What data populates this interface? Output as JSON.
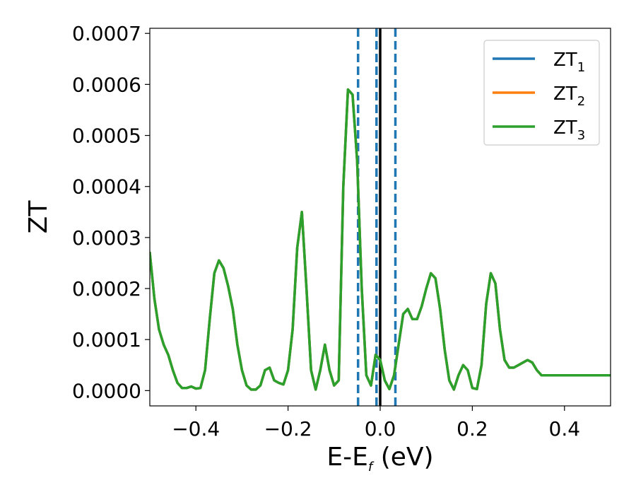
{
  "chart_data": {
    "type": "line",
    "xlabel_main": "E-E",
    "xlabel_sub": "f",
    "xlabel_unit": " (eV)",
    "ylabel": "ZT",
    "xlim": [
      -0.5,
      0.5
    ],
    "ylim": [
      -3e-05,
      0.00071
    ],
    "xticks": [
      -0.4,
      -0.2,
      0.0,
      0.2,
      0.4
    ],
    "xtick_labels": [
      "−0.4",
      "−0.2",
      "0.0",
      "0.2",
      "0.4"
    ],
    "yticks": [
      0.0,
      0.0001,
      0.0002,
      0.0003,
      0.0004,
      0.0005,
      0.0006,
      0.0007
    ],
    "ytick_labels": [
      "0.0000",
      "0.0001",
      "0.0002",
      "0.0003",
      "0.0004",
      "0.0005",
      "0.0006",
      "0.0007"
    ],
    "legend_position": "top-right",
    "grid": false,
    "vlines": [
      {
        "x": -0.048,
        "style": "dashed",
        "color": "#1f77b4"
      },
      {
        "x": -0.008,
        "style": "dashed",
        "color": "#1f77b4"
      },
      {
        "x": 0.033,
        "style": "dashed",
        "color": "#1f77b4"
      },
      {
        "x": 0.0,
        "style": "solid",
        "color": "#000000"
      }
    ],
    "series": [
      {
        "name": "ZT",
        "sub": "1",
        "color": "#1f77b4"
      },
      {
        "name": "ZT",
        "sub": "2",
        "color": "#ff7f0e"
      },
      {
        "name": "ZT",
        "sub": "3",
        "color": "#2ca02c"
      }
    ],
    "x": [
      -0.5,
      -0.49,
      -0.48,
      -0.47,
      -0.46,
      -0.45,
      -0.44,
      -0.43,
      -0.42,
      -0.41,
      -0.4,
      -0.39,
      -0.38,
      -0.37,
      -0.36,
      -0.35,
      -0.34,
      -0.33,
      -0.32,
      -0.31,
      -0.3,
      -0.29,
      -0.28,
      -0.27,
      -0.26,
      -0.25,
      -0.24,
      -0.23,
      -0.22,
      -0.21,
      -0.2,
      -0.19,
      -0.18,
      -0.17,
      -0.16,
      -0.15,
      -0.14,
      -0.13,
      -0.12,
      -0.11,
      -0.1,
      -0.09,
      -0.08,
      -0.07,
      -0.06,
      -0.05,
      -0.04,
      -0.03,
      -0.02,
      -0.01,
      0.0,
      0.01,
      0.02,
      0.03,
      0.04,
      0.05,
      0.06,
      0.07,
      0.08,
      0.09,
      0.1,
      0.11,
      0.12,
      0.13,
      0.14,
      0.15,
      0.16,
      0.17,
      0.18,
      0.19,
      0.2,
      0.21,
      0.22,
      0.23,
      0.24,
      0.25,
      0.26,
      0.27,
      0.28,
      0.29,
      0.3,
      0.31,
      0.32,
      0.33,
      0.34,
      0.35,
      0.36,
      0.37,
      0.38,
      0.39,
      0.4,
      0.41,
      0.42,
      0.43,
      0.44,
      0.45,
      0.46,
      0.47,
      0.48,
      0.49,
      0.5
    ],
    "y": [
      0.00027,
      0.00018,
      0.00012,
      9e-05,
      7e-05,
      4e-05,
      1.5e-05,
      5e-06,
      5e-06,
      8e-06,
      4e-06,
      5e-06,
      4e-05,
      0.00014,
      0.00023,
      0.000255,
      0.00024,
      0.000205,
      0.00016,
      9e-05,
      4e-05,
      1e-05,
      2e-06,
      2e-06,
      1e-05,
      4e-05,
      4.5e-05,
      2e-05,
      1.5e-05,
      1.2e-05,
      4e-05,
      0.00012,
      0.00028,
      0.00035,
      0.0002,
      4e-05,
      2e-06,
      4e-05,
      9e-05,
      4e-05,
      1e-05,
      2e-05,
      0.0004,
      0.00059,
      0.00058,
      0.00045,
      0.0002,
      3e-05,
      1e-05,
      7e-05,
      6e-05,
      2e-05,
      3e-06,
      3e-05,
      9e-05,
      0.00015,
      0.00016,
      0.00014,
      0.00014,
      0.000165,
      0.0002,
      0.00023,
      0.00022,
      0.00016,
      8e-05,
      2e-05,
      2e-06,
      3e-05,
      5e-05,
      4e-05,
      5e-06,
      3e-06,
      5e-05,
      0.00017,
      0.00023,
      0.00021,
      0.00012,
      6e-05,
      4.5e-05,
      4.5e-05,
      5e-05,
      5.5e-05,
      6e-05,
      5.5e-05,
      4e-05,
      3e-05,
      3e-05,
      3e-05,
      3e-05,
      3e-05,
      3e-05,
      3e-05,
      3e-05,
      3e-05,
      3e-05,
      3e-05,
      3e-05,
      3e-05,
      3e-05,
      3e-05,
      3e-05
    ]
  }
}
